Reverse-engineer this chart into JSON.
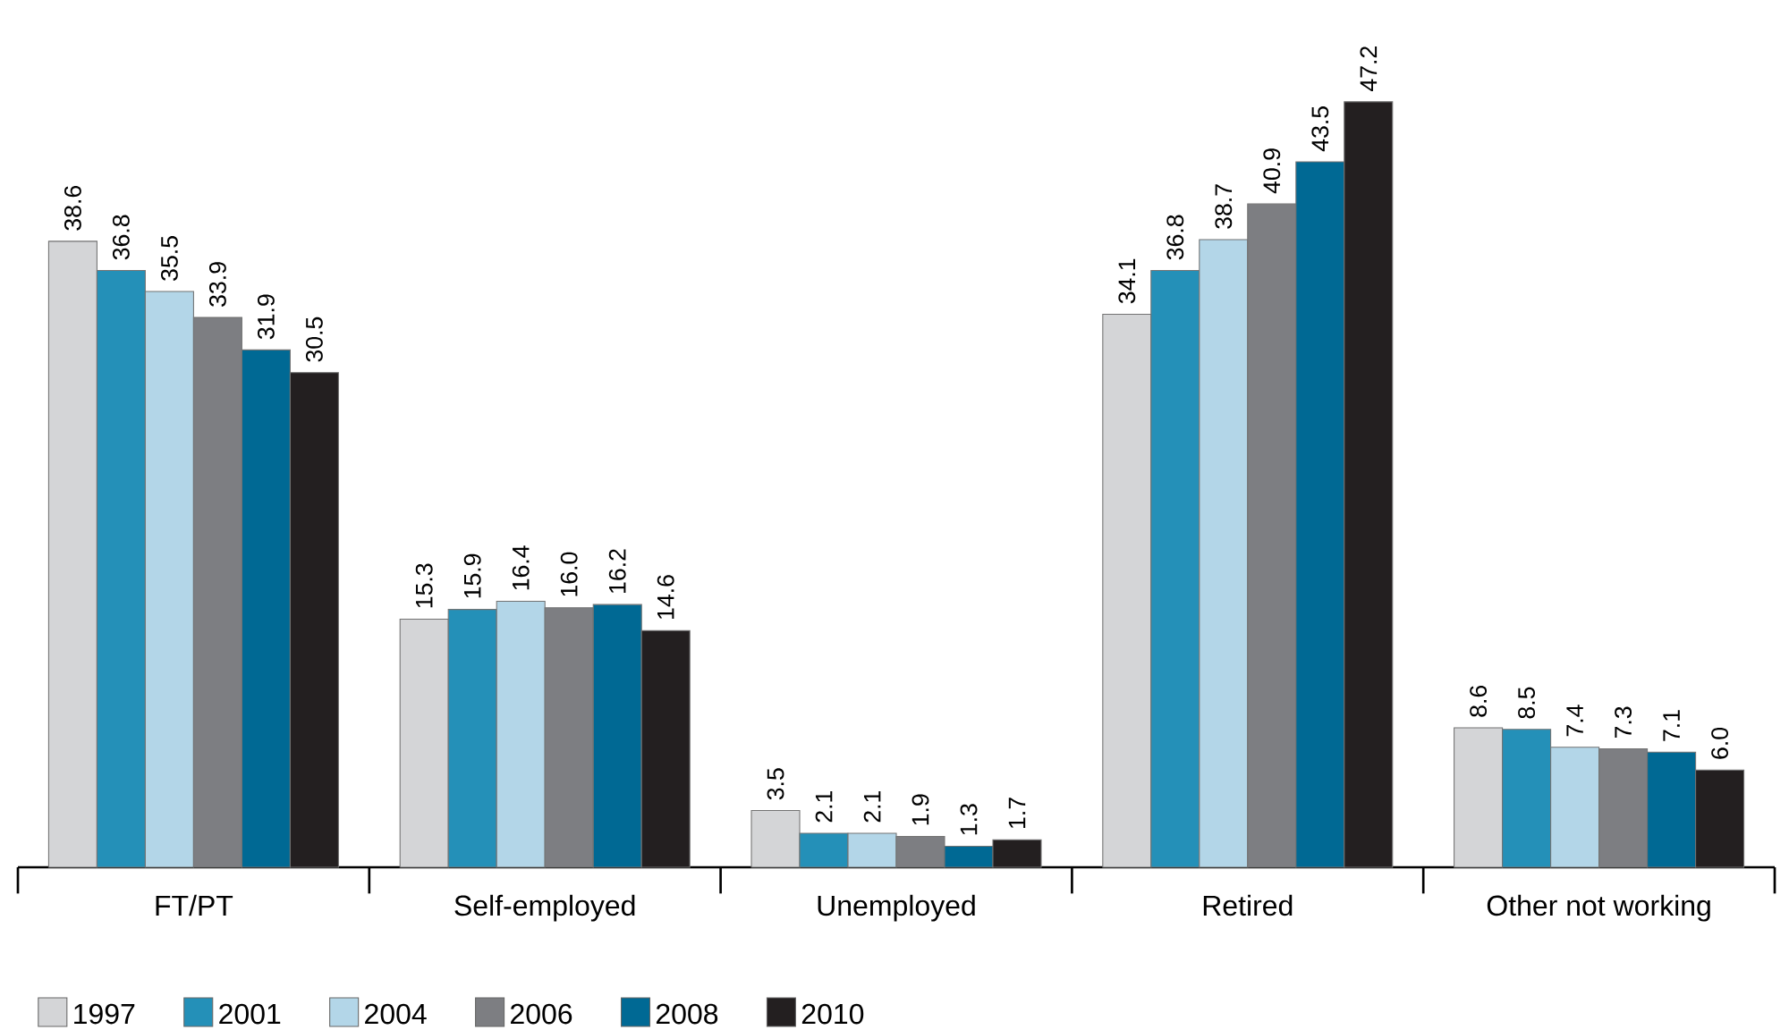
{
  "chart_data": {
    "type": "bar",
    "categories": [
      "FT/PT",
      "Self-employed",
      "Unemployed",
      "Retired",
      "Other not working"
    ],
    "series": [
      {
        "name": "1997",
        "color": "#d4d5d7",
        "values": [
          38.6,
          15.3,
          3.5,
          34.1,
          8.6
        ],
        "value_labels": [
          "38.6",
          "15.3",
          "3.5",
          "34.1",
          "8.6"
        ]
      },
      {
        "name": "2001",
        "color": "#2490b8",
        "values": [
          36.8,
          15.9,
          2.1,
          36.8,
          8.5
        ],
        "value_labels": [
          "36.8",
          "15.9",
          "2.1",
          "36.8",
          "8.5"
        ]
      },
      {
        "name": "2004",
        "color": "#b3d6e8",
        "values": [
          35.5,
          16.4,
          2.1,
          38.7,
          7.4
        ],
        "value_labels": [
          "35.5",
          "16.4",
          "2.1",
          "38.7",
          "7.4"
        ]
      },
      {
        "name": "2006",
        "color": "#7d7e82",
        "values": [
          33.9,
          16.0,
          1.9,
          40.9,
          7.3
        ],
        "value_labels": [
          "33.9",
          "16.0",
          "1.9",
          "40.9",
          "7.3"
        ]
      },
      {
        "name": "2008",
        "color": "#006994",
        "values": [
          31.9,
          16.2,
          1.3,
          43.5,
          7.1
        ],
        "value_labels": [
          "31.9",
          "16.2",
          "1.3",
          "43.5",
          "7.1"
        ]
      },
      {
        "name": "2010",
        "color": "#231f20",
        "values": [
          30.5,
          14.6,
          1.7,
          47.2,
          6.0
        ],
        "value_labels": [
          "30.5",
          "14.6",
          "1.7",
          "47.2",
          "6.0"
        ]
      }
    ],
    "legend": "bottom left"
  }
}
